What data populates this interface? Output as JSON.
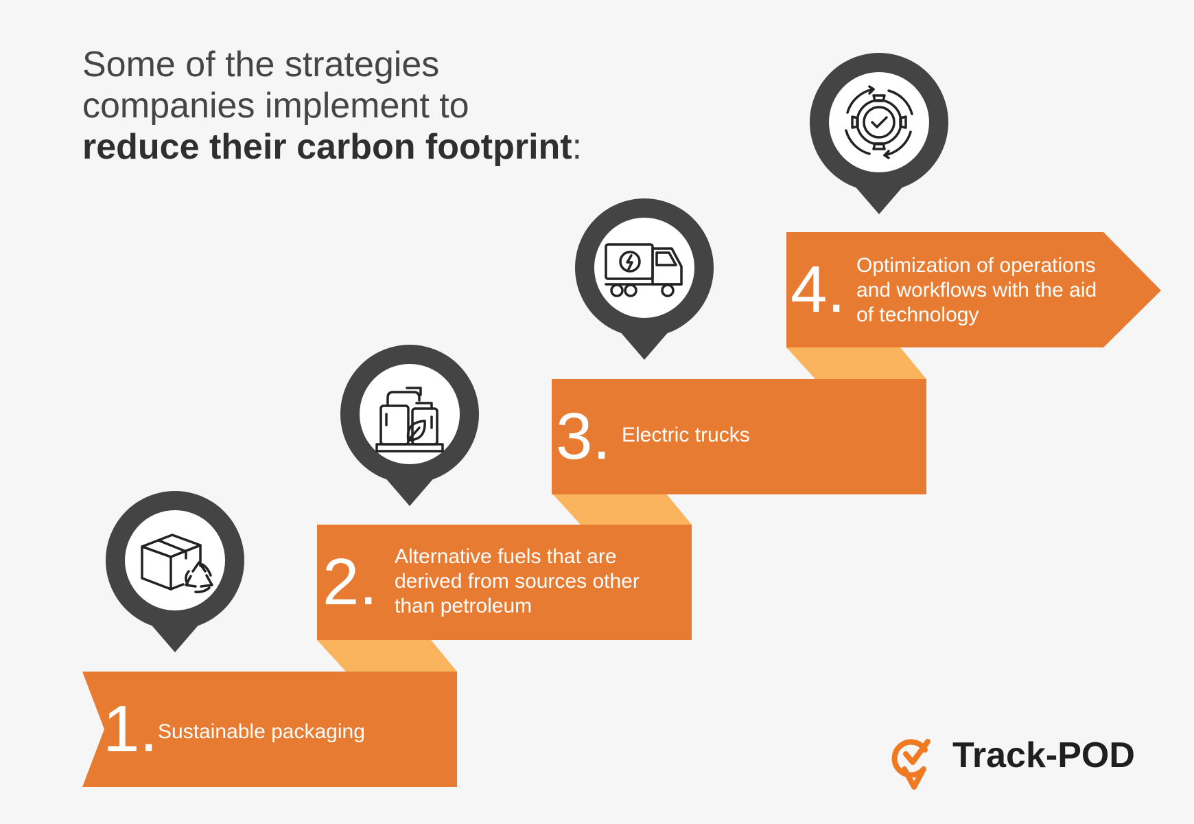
{
  "title": {
    "line1": "Some of the strategies",
    "line2": "companies implement to",
    "line3_bold": "reduce their carbon footprint",
    "line3_suffix": ":"
  },
  "steps": [
    {
      "number": "1.",
      "text": "Sustainable packaging",
      "icon": "recycled-box-icon"
    },
    {
      "number": "2.",
      "text": "Alternative fuels that are derived from sources other than petroleum",
      "icon": "biofuel-tank-icon"
    },
    {
      "number": "3.",
      "text": "Electric trucks",
      "icon": "electric-truck-icon"
    },
    {
      "number": "4.",
      "text": "Optimization of operations and workflows with the aid of technology",
      "icon": "gear-check-cycle-icon"
    }
  ],
  "logo": {
    "text": "Track-POD",
    "icon": "checkmark-pin-logo-icon"
  },
  "colors": {
    "background": "#f6f6f6",
    "ribbon": "#e77b32",
    "ribbon_fold": "#fbb45e",
    "pin": "#444444",
    "pin_inner": "#ffffff",
    "logo_accent": "#f07a22"
  }
}
